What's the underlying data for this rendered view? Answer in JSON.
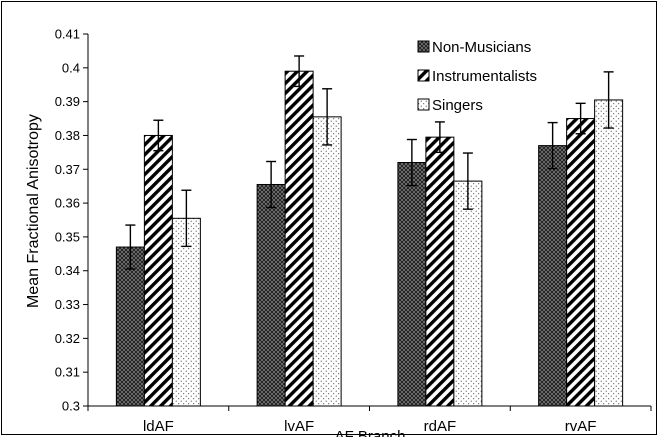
{
  "chart_data": {
    "type": "bar",
    "title": "",
    "xlabel": "AF Branch",
    "ylabel": "Mean Fractional Anisotropy",
    "ylim": [
      0.3,
      0.41
    ],
    "yticks": [
      "0.3",
      "0.31",
      "0.32",
      "0.33",
      "0.34",
      "0.35",
      "0.36",
      "0.37",
      "0.38",
      "0.39",
      "0.4",
      "0.41"
    ],
    "categories": [
      "ldAF",
      "lvAF",
      "rdAF",
      "rvAF"
    ],
    "grid": false,
    "legend_position": "top-right",
    "error_bars": true,
    "series": [
      {
        "name": "Non-Musicians",
        "pattern": "crosshatch",
        "values": [
          0.347,
          0.3655,
          0.372,
          0.377
        ],
        "errors": [
          0.0065,
          0.0068,
          0.0068,
          0.0068
        ]
      },
      {
        "name": "Instrumentalists",
        "pattern": "diagonal",
        "values": [
          0.38,
          0.399,
          0.3795,
          0.385
        ],
        "errors": [
          0.0045,
          0.0045,
          0.0045,
          0.0045
        ]
      },
      {
        "name": "Singers",
        "pattern": "dots",
        "values": [
          0.3555,
          0.3855,
          0.3665,
          0.3905
        ],
        "errors": [
          0.0083,
          0.0083,
          0.0083,
          0.0083
        ]
      }
    ]
  }
}
